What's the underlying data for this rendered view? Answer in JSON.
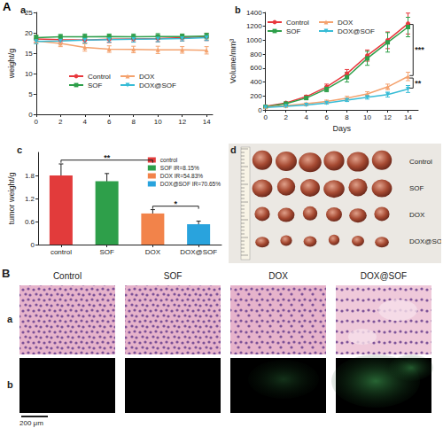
{
  "chart_data": [
    {
      "type": "line",
      "title": "a",
      "y_label": "weight/g",
      "x": [
        0,
        2,
        4,
        6,
        8,
        10,
        12,
        14
      ],
      "xlim": [
        0,
        14.5
      ],
      "xticks": [
        0,
        2,
        4,
        6,
        8,
        10,
        12,
        14
      ],
      "ylim": [
        0,
        25
      ],
      "yticks": [
        0,
        5,
        10,
        15,
        20,
        25
      ],
      "grid": false,
      "legend": "bottom",
      "series": [
        {
          "name": "Control",
          "color": "#e8383d",
          "marker": "circle",
          "values": [
            18.5,
            18.3,
            18.2,
            18.4,
            18.5,
            18.6,
            18.8,
            19.0
          ],
          "errors": [
            0.8,
            0.7,
            0.7,
            0.8,
            0.7,
            0.8,
            0.8,
            0.9
          ]
        },
        {
          "name": "SOF",
          "color": "#2e9f4a",
          "marker": "square",
          "values": [
            18.8,
            19.0,
            19.0,
            19.1,
            19.0,
            19.1,
            19.1,
            19.2
          ],
          "errors": [
            0.6,
            0.6,
            0.7,
            0.6,
            0.7,
            0.7,
            0.6,
            0.7
          ]
        },
        {
          "name": "DOX",
          "color": "#f4a26e",
          "marker": "triangle",
          "values": [
            18.0,
            17.4,
            16.4,
            16.0,
            15.9,
            15.8,
            15.8,
            15.7
          ],
          "errors": [
            0.7,
            0.8,
            0.9,
            0.8,
            0.8,
            0.9,
            0.8,
            0.9
          ]
        },
        {
          "name": "DOX@SOF",
          "color": "#37bcd6",
          "marker": "triangle-down",
          "values": [
            17.9,
            18.0,
            18.2,
            18.3,
            18.4,
            18.5,
            18.6,
            18.8
          ],
          "errors": [
            0.6,
            0.7,
            0.7,
            0.6,
            0.7,
            0.7,
            0.6,
            0.7
          ]
        }
      ]
    },
    {
      "type": "line",
      "title": "b",
      "x_label": "Days",
      "y_label": "Volume/mm³",
      "x": [
        0,
        2,
        4,
        6,
        8,
        10,
        12,
        14
      ],
      "xlim": [
        0,
        15
      ],
      "xticks": [
        0,
        2,
        4,
        6,
        8,
        10,
        12,
        14
      ],
      "ylim": [
        0,
        1400
      ],
      "yticks": [
        0,
        200,
        400,
        600,
        800,
        1000,
        1200,
        1400
      ],
      "grid": false,
      "legend": "upper left",
      "series": [
        {
          "name": "Control",
          "color": "#e8383d",
          "marker": "circle",
          "values": [
            50,
            100,
            190,
            330,
            520,
            780,
            1000,
            1240
          ],
          "errors": [
            5,
            10,
            20,
            40,
            60,
            80,
            120,
            150
          ]
        },
        {
          "name": "SOF",
          "color": "#2e9f4a",
          "marker": "square",
          "values": [
            45,
            90,
            170,
            300,
            470,
            740,
            970,
            1190
          ],
          "errors": [
            5,
            10,
            20,
            40,
            70,
            100,
            140,
            140
          ]
        },
        {
          "name": "DOX",
          "color": "#f4a26e",
          "marker": "triangle",
          "values": [
            40,
            60,
            90,
            120,
            170,
            230,
            330,
            480
          ],
          "errors": [
            5,
            8,
            10,
            20,
            25,
            30,
            40,
            60
          ]
        },
        {
          "name": "DOX@SOF",
          "color": "#37bcd6",
          "marker": "triangle-down",
          "values": [
            35,
            50,
            70,
            100,
            140,
            180,
            220,
            300
          ],
          "errors": [
            5,
            8,
            10,
            15,
            20,
            25,
            35,
            50
          ]
        }
      ],
      "annotations": [
        {
          "text": "***",
          "x": 14.5,
          "y1": 1240,
          "y2": 480
        },
        {
          "text": "**",
          "x": 14.5,
          "y1": 470,
          "y2": 300
        }
      ]
    },
    {
      "type": "bar",
      "title": "c",
      "y_label": "tumor weight/g",
      "categories": [
        "control",
        "SOF",
        "DOX",
        "DOX@SOF"
      ],
      "ylim": [
        0,
        2.4
      ],
      "yticks": [
        0,
        0.6,
        1.2,
        1.8
      ],
      "grid": false,
      "legend": "upper right",
      "series": [
        {
          "name": "control",
          "color": "#e23b3b",
          "values": [
            1.8,
            null,
            null,
            null
          ],
          "errors": [
            0.3,
            null,
            null,
            null
          ]
        },
        {
          "name": "SOF IR=8.15%",
          "color": "#2e9f4a",
          "values": [
            null,
            1.65,
            null,
            null
          ],
          "errors": [
            null,
            0.2,
            null,
            null
          ]
        },
        {
          "name": "DOX IR=54.83%",
          "color": "#f2834a",
          "values": [
            null,
            null,
            0.81,
            null
          ],
          "errors": [
            null,
            null,
            0.1,
            null
          ]
        },
        {
          "name": "DOX@SOF IR=70.65%",
          "color": "#29a3dd",
          "values": [
            null,
            null,
            null,
            0.53
          ],
          "errors": [
            null,
            null,
            null,
            0.08
          ]
        }
      ],
      "annotations": [
        {
          "text": "**",
          "from": "control",
          "to": "DOX",
          "y": 2.2
        },
        {
          "text": "*",
          "from": "DOX",
          "to": "DOX@SOF",
          "y": 1.0
        }
      ]
    }
  ],
  "figure": {
    "panel_labels": [
      "A",
      "B"
    ],
    "photo": {
      "label": "d",
      "rows": [
        "Control",
        "SOF",
        "DOX",
        "DOX@SOF"
      ]
    },
    "histology": {
      "columns": [
        "Control",
        "SOF",
        "DOX",
        "DOX@SOF"
      ],
      "rows": [
        "a",
        "b"
      ],
      "scale_bar": "200 μm"
    }
  }
}
